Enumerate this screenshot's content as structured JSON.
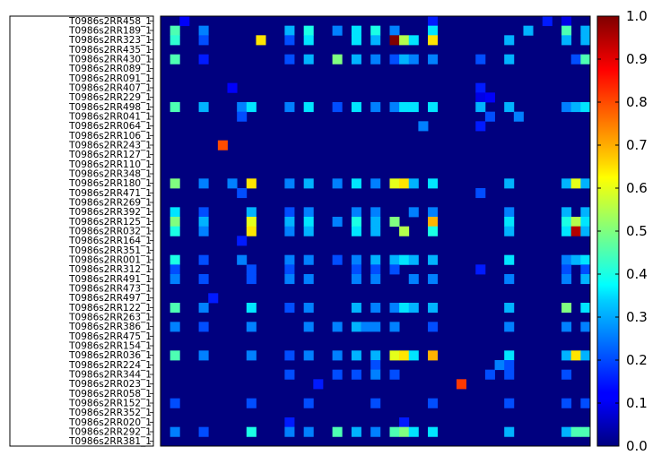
{
  "chart_data": {
    "type": "heatmap",
    "title": "",
    "xlabel": "",
    "ylabel": "",
    "row_labels": [
      "T0986s2RR458_1",
      "T0986s2RR189_1",
      "T0986s2RR323_1",
      "T0986s2RR435_1",
      "T0986s2RR430_1",
      "T0986s2RR089_1",
      "T0986s2RR091_1",
      "T0986s2RR407_1",
      "T0986s2RR229_1",
      "T0986s2RR498_1",
      "T0986s2RR041_1",
      "T0986s2RR064_1",
      "T0986s2RR106_1",
      "T0986s2RR243_1",
      "T0986s2RR127_1",
      "T0986s2RR110_1",
      "T0986s2RR348_1",
      "T0986s2RR180_1",
      "T0986s2RR471_1",
      "T0986s2RR269_1",
      "T0986s2RR392_1",
      "T0986s2RR125_1",
      "T0986s2RR032_1",
      "T0986s2RR164_1",
      "T0986s2RR351_1",
      "T0986s2RR001_1",
      "T0986s2RR312_1",
      "T0986s2RR491_1",
      "T0986s2RR473_1",
      "T0986s2RR497_1",
      "T0986s2RR122_1",
      "T0986s2RR263_1",
      "T0986s2RR386_1",
      "T0986s2RR475_1",
      "T0986s2RR154_1",
      "T0986s2RR036_1",
      "T0986s2RR224_1",
      "T0986s2RR344_1",
      "T0986s2RR023_1",
      "T0986s2RR058_1",
      "T0986s2RR152_1",
      "T0986s2RR352_1",
      "T0986s2RR020_1",
      "T0986s2RR292_1",
      "T0986s2RR381_1"
    ],
    "n_cols": 45,
    "value_range": [
      0,
      1
    ],
    "colormap": "jet",
    "colorbar_ticks": [
      "0.0",
      "0.1",
      "0.2",
      "0.3",
      "0.4",
      "0.5",
      "0.6",
      "0.7",
      "0.8",
      "0.9",
      "1.0"
    ],
    "cells": [
      [
        0,
        2,
        0.12
      ],
      [
        0,
        28,
        0.15
      ],
      [
        0,
        40,
        0.15
      ],
      [
        0,
        42,
        0.1
      ],
      [
        1,
        1,
        0.45
      ],
      [
        1,
        4,
        0.25
      ],
      [
        1,
        13,
        0.3
      ],
      [
        1,
        15,
        0.4
      ],
      [
        1,
        18,
        0.25
      ],
      [
        1,
        20,
        0.35
      ],
      [
        1,
        22,
        0.4
      ],
      [
        1,
        24,
        0.25
      ],
      [
        1,
        28,
        0.35
      ],
      [
        1,
        38,
        0.3
      ],
      [
        1,
        42,
        0.45
      ],
      [
        1,
        44,
        0.3
      ],
      [
        2,
        1,
        0.42
      ],
      [
        2,
        4,
        0.2
      ],
      [
        2,
        10,
        0.65
      ],
      [
        2,
        13,
        0.2
      ],
      [
        2,
        15,
        0.35
      ],
      [
        2,
        20,
        0.35
      ],
      [
        2,
        22,
        0.3
      ],
      [
        2,
        24,
        1.0
      ],
      [
        2,
        25,
        0.55
      ],
      [
        2,
        26,
        0.35
      ],
      [
        2,
        28,
        0.65
      ],
      [
        2,
        36,
        0.3
      ],
      [
        2,
        42,
        0.3
      ],
      [
        2,
        44,
        0.3
      ],
      [
        4,
        1,
        0.45
      ],
      [
        4,
        4,
        0.15
      ],
      [
        4,
        13,
        0.2
      ],
      [
        4,
        15,
        0.3
      ],
      [
        4,
        18,
        0.5
      ],
      [
        4,
        20,
        0.3
      ],
      [
        4,
        22,
        0.25
      ],
      [
        4,
        24,
        0.2
      ],
      [
        4,
        25,
        0.3
      ],
      [
        4,
        26,
        0.25
      ],
      [
        4,
        28,
        0.25
      ],
      [
        4,
        33,
        0.2
      ],
      [
        4,
        36,
        0.3
      ],
      [
        4,
        43,
        0.2
      ],
      [
        4,
        44,
        0.45
      ],
      [
        7,
        7,
        0.12
      ],
      [
        7,
        33,
        0.15
      ],
      [
        8,
        33,
        0.1
      ],
      [
        8,
        34,
        0.12
      ],
      [
        9,
        1,
        0.45
      ],
      [
        9,
        4,
        0.3
      ],
      [
        9,
        8,
        0.25
      ],
      [
        9,
        9,
        0.35
      ],
      [
        9,
        13,
        0.25
      ],
      [
        9,
        15,
        0.35
      ],
      [
        9,
        18,
        0.2
      ],
      [
        9,
        20,
        0.35
      ],
      [
        9,
        22,
        0.25
      ],
      [
        9,
        24,
        0.25
      ],
      [
        9,
        25,
        0.35
      ],
      [
        9,
        26,
        0.35
      ],
      [
        9,
        28,
        0.35
      ],
      [
        9,
        33,
        0.3
      ],
      [
        9,
        36,
        0.3
      ],
      [
        9,
        42,
        0.25
      ],
      [
        9,
        43,
        0.3
      ],
      [
        9,
        44,
        0.35
      ],
      [
        10,
        8,
        0.2
      ],
      [
        10,
        34,
        0.2
      ],
      [
        10,
        37,
        0.25
      ],
      [
        11,
        27,
        0.25
      ],
      [
        11,
        33,
        0.15
      ],
      [
        13,
        6,
        0.8
      ],
      [
        17,
        1,
        0.5
      ],
      [
        17,
        4,
        0.25
      ],
      [
        17,
        7,
        0.25
      ],
      [
        17,
        9,
        0.65
      ],
      [
        17,
        13,
        0.25
      ],
      [
        17,
        15,
        0.3
      ],
      [
        17,
        18,
        0.25
      ],
      [
        17,
        20,
        0.35
      ],
      [
        17,
        22,
        0.25
      ],
      [
        17,
        24,
        0.6
      ],
      [
        17,
        25,
        0.65
      ],
      [
        17,
        26,
        0.3
      ],
      [
        17,
        28,
        0.35
      ],
      [
        17,
        36,
        0.3
      ],
      [
        17,
        42,
        0.3
      ],
      [
        17,
        43,
        0.6
      ],
      [
        17,
        44,
        0.3
      ],
      [
        18,
        8,
        0.2
      ],
      [
        18,
        33,
        0.2
      ],
      [
        20,
        1,
        0.35
      ],
      [
        20,
        4,
        0.2
      ],
      [
        20,
        9,
        0.3
      ],
      [
        20,
        13,
        0.2
      ],
      [
        20,
        15,
        0.25
      ],
      [
        20,
        20,
        0.25
      ],
      [
        20,
        22,
        0.25
      ],
      [
        20,
        26,
        0.25
      ],
      [
        20,
        28,
        0.25
      ],
      [
        20,
        36,
        0.25
      ],
      [
        20,
        42,
        0.3
      ],
      [
        20,
        44,
        0.3
      ],
      [
        21,
        1,
        0.5
      ],
      [
        21,
        4,
        0.3
      ],
      [
        21,
        9,
        0.6
      ],
      [
        21,
        13,
        0.3
      ],
      [
        21,
        15,
        0.35
      ],
      [
        21,
        18,
        0.25
      ],
      [
        21,
        20,
        0.4
      ],
      [
        21,
        22,
        0.3
      ],
      [
        21,
        24,
        0.5
      ],
      [
        21,
        28,
        0.7
      ],
      [
        21,
        36,
        0.35
      ],
      [
        21,
        42,
        0.4
      ],
      [
        21,
        43,
        0.55
      ],
      [
        21,
        44,
        0.35
      ],
      [
        22,
        1,
        0.4
      ],
      [
        22,
        4,
        0.25
      ],
      [
        22,
        9,
        0.65
      ],
      [
        22,
        13,
        0.25
      ],
      [
        22,
        15,
        0.3
      ],
      [
        22,
        20,
        0.35
      ],
      [
        22,
        22,
        0.3
      ],
      [
        22,
        25,
        0.55
      ],
      [
        22,
        28,
        0.4
      ],
      [
        22,
        36,
        0.3
      ],
      [
        22,
        42,
        0.35
      ],
      [
        22,
        43,
        0.95
      ],
      [
        22,
        44,
        0.3
      ],
      [
        23,
        8,
        0.15
      ],
      [
        25,
        1,
        0.4
      ],
      [
        25,
        4,
        0.2
      ],
      [
        25,
        8,
        0.25
      ],
      [
        25,
        13,
        0.25
      ],
      [
        25,
        15,
        0.25
      ],
      [
        25,
        18,
        0.2
      ],
      [
        25,
        20,
        0.25
      ],
      [
        25,
        22,
        0.3
      ],
      [
        25,
        24,
        0.3
      ],
      [
        25,
        25,
        0.35
      ],
      [
        25,
        26,
        0.3
      ],
      [
        25,
        28,
        0.3
      ],
      [
        25,
        36,
        0.35
      ],
      [
        25,
        42,
        0.25
      ],
      [
        25,
        43,
        0.3
      ],
      [
        25,
        44,
        0.35
      ],
      [
        26,
        1,
        0.2
      ],
      [
        26,
        9,
        0.2
      ],
      [
        26,
        13,
        0.2
      ],
      [
        26,
        20,
        0.2
      ],
      [
        26,
        22,
        0.2
      ],
      [
        26,
        24,
        0.2
      ],
      [
        26,
        33,
        0.15
      ],
      [
        26,
        42,
        0.2
      ],
      [
        26,
        44,
        0.2
      ],
      [
        27,
        1,
        0.25
      ],
      [
        27,
        4,
        0.2
      ],
      [
        27,
        9,
        0.2
      ],
      [
        27,
        13,
        0.25
      ],
      [
        27,
        15,
        0.25
      ],
      [
        27,
        20,
        0.25
      ],
      [
        27,
        22,
        0.25
      ],
      [
        27,
        26,
        0.25
      ],
      [
        27,
        28,
        0.25
      ],
      [
        27,
        36,
        0.25
      ],
      [
        27,
        42,
        0.25
      ],
      [
        27,
        44,
        0.3
      ],
      [
        29,
        5,
        0.15
      ],
      [
        30,
        1,
        0.45
      ],
      [
        30,
        4,
        0.25
      ],
      [
        30,
        9,
        0.35
      ],
      [
        30,
        13,
        0.2
      ],
      [
        30,
        15,
        0.25
      ],
      [
        30,
        20,
        0.3
      ],
      [
        30,
        22,
        0.25
      ],
      [
        30,
        24,
        0.25
      ],
      [
        30,
        25,
        0.35
      ],
      [
        30,
        26,
        0.3
      ],
      [
        30,
        28,
        0.3
      ],
      [
        30,
        36,
        0.3
      ],
      [
        30,
        42,
        0.5
      ],
      [
        30,
        44,
        0.35
      ],
      [
        32,
        1,
        0.25
      ],
      [
        32,
        4,
        0.2
      ],
      [
        32,
        9,
        0.25
      ],
      [
        32,
        15,
        0.25
      ],
      [
        32,
        18,
        0.25
      ],
      [
        32,
        20,
        0.3
      ],
      [
        32,
        21,
        0.25
      ],
      [
        32,
        22,
        0.25
      ],
      [
        32,
        24,
        0.25
      ],
      [
        32,
        28,
        0.2
      ],
      [
        32,
        36,
        0.25
      ],
      [
        32,
        42,
        0.25
      ],
      [
        32,
        44,
        0.25
      ],
      [
        35,
        1,
        0.45
      ],
      [
        35,
        4,
        0.25
      ],
      [
        35,
        9,
        0.25
      ],
      [
        35,
        13,
        0.2
      ],
      [
        35,
        15,
        0.25
      ],
      [
        35,
        18,
        0.25
      ],
      [
        35,
        20,
        0.3
      ],
      [
        35,
        22,
        0.3
      ],
      [
        35,
        24,
        0.6
      ],
      [
        35,
        25,
        0.65
      ],
      [
        35,
        26,
        0.35
      ],
      [
        35,
        28,
        0.7
      ],
      [
        35,
        36,
        0.35
      ],
      [
        35,
        42,
        0.3
      ],
      [
        35,
        43,
        0.65
      ],
      [
        35,
        44,
        0.3
      ],
      [
        36,
        22,
        0.2
      ],
      [
        36,
        35,
        0.25
      ],
      [
        36,
        36,
        0.2
      ],
      [
        37,
        13,
        0.2
      ],
      [
        37,
        18,
        0.2
      ],
      [
        37,
        20,
        0.2
      ],
      [
        37,
        22,
        0.25
      ],
      [
        37,
        24,
        0.2
      ],
      [
        37,
        34,
        0.2
      ],
      [
        37,
        36,
        0.2
      ],
      [
        37,
        42,
        0.2
      ],
      [
        38,
        16,
        0.15
      ],
      [
        38,
        31,
        0.82
      ],
      [
        40,
        1,
        0.2
      ],
      [
        40,
        9,
        0.2
      ],
      [
        40,
        15,
        0.2
      ],
      [
        40,
        22,
        0.2
      ],
      [
        40,
        28,
        0.2
      ],
      [
        40,
        36,
        0.2
      ],
      [
        40,
        42,
        0.2
      ],
      [
        40,
        44,
        0.2
      ],
      [
        42,
        13,
        0.15
      ],
      [
        42,
        25,
        0.15
      ],
      [
        43,
        1,
        0.25
      ],
      [
        43,
        4,
        0.2
      ],
      [
        43,
        9,
        0.4
      ],
      [
        43,
        13,
        0.25
      ],
      [
        43,
        15,
        0.25
      ],
      [
        43,
        18,
        0.45
      ],
      [
        43,
        20,
        0.3
      ],
      [
        43,
        22,
        0.25
      ],
      [
        43,
        24,
        0.45
      ],
      [
        43,
        25,
        0.5
      ],
      [
        43,
        26,
        0.35
      ],
      [
        43,
        28,
        0.35
      ],
      [
        43,
        36,
        0.3
      ],
      [
        43,
        42,
        0.3
      ],
      [
        43,
        43,
        0.45
      ],
      [
        43,
        44,
        0.45
      ]
    ],
    "grid": false,
    "legend": "colorbar-right"
  }
}
